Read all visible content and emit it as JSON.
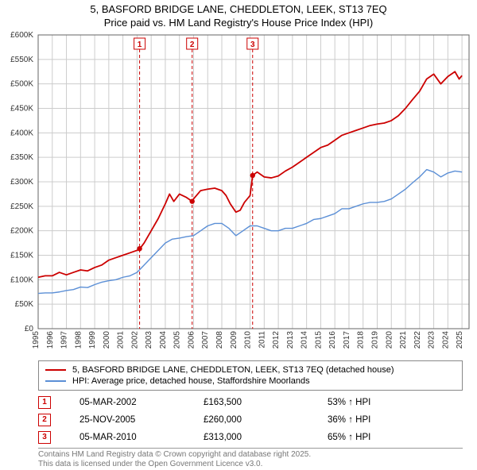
{
  "title_line1": "5, BASFORD BRIDGE LANE, CHEDDLETON, LEEK, ST13 7EQ",
  "title_line2": "Price paid vs. HM Land Registry's House Price Index (HPI)",
  "title_fontsize": 13,
  "chart": {
    "type": "line",
    "background_color": "#ffffff",
    "grid_color": "#cccccc",
    "axis_color": "#666666",
    "tick_fontsize": 10,
    "x_years": [
      1995,
      1996,
      1997,
      1998,
      1999,
      2000,
      2001,
      2002,
      2003,
      2004,
      2005,
      2006,
      2007,
      2008,
      2009,
      2010,
      2011,
      2012,
      2013,
      2014,
      2015,
      2016,
      2017,
      2018,
      2019,
      2020,
      2021,
      2022,
      2023,
      2024,
      2025
    ],
    "y_ticks": [
      0,
      50000,
      100000,
      150000,
      200000,
      250000,
      300000,
      350000,
      400000,
      450000,
      500000,
      550000,
      600000
    ],
    "y_tick_labels": [
      "£0",
      "£50K",
      "£100K",
      "£150K",
      "£200K",
      "£250K",
      "£300K",
      "£350K",
      "£400K",
      "£450K",
      "£500K",
      "£550K",
      "£600K"
    ],
    "xlim": [
      1995,
      2025.5
    ],
    "ylim": [
      0,
      600000
    ],
    "series": [
      {
        "name": "price_paid",
        "color": "#cc0000",
        "line_width": 1.8,
        "data": [
          [
            1995,
            105000
          ],
          [
            1995.5,
            108000
          ],
          [
            1996,
            108000
          ],
          [
            1996.5,
            115000
          ],
          [
            1997,
            110000
          ],
          [
            1997.5,
            115000
          ],
          [
            1998,
            120000
          ],
          [
            1998.5,
            118000
          ],
          [
            1999,
            125000
          ],
          [
            1999.5,
            130000
          ],
          [
            2000,
            140000
          ],
          [
            2000.5,
            145000
          ],
          [
            2001,
            150000
          ],
          [
            2001.5,
            155000
          ],
          [
            2002,
            160000
          ],
          [
            2002.2,
            163500
          ],
          [
            2002.5,
            175000
          ],
          [
            2003,
            200000
          ],
          [
            2003.5,
            225000
          ],
          [
            2004,
            255000
          ],
          [
            2004.3,
            275000
          ],
          [
            2004.6,
            260000
          ],
          [
            2005,
            275000
          ],
          [
            2005.5,
            268000
          ],
          [
            2005.9,
            260000
          ],
          [
            2006,
            265000
          ],
          [
            2006.5,
            282000
          ],
          [
            2007,
            285000
          ],
          [
            2007.5,
            287000
          ],
          [
            2008,
            282000
          ],
          [
            2008.3,
            272000
          ],
          [
            2008.6,
            255000
          ],
          [
            2009,
            238000
          ],
          [
            2009.3,
            242000
          ],
          [
            2009.6,
            258000
          ],
          [
            2010,
            272000
          ],
          [
            2010.18,
            313000
          ],
          [
            2010.5,
            320000
          ],
          [
            2011,
            310000
          ],
          [
            2011.5,
            308000
          ],
          [
            2012,
            312000
          ],
          [
            2012.5,
            322000
          ],
          [
            2013,
            330000
          ],
          [
            2013.5,
            340000
          ],
          [
            2014,
            350000
          ],
          [
            2014.5,
            360000
          ],
          [
            2015,
            370000
          ],
          [
            2015.5,
            375000
          ],
          [
            2016,
            385000
          ],
          [
            2016.5,
            395000
          ],
          [
            2017,
            400000
          ],
          [
            2017.5,
            405000
          ],
          [
            2018,
            410000
          ],
          [
            2018.5,
            415000
          ],
          [
            2019,
            418000
          ],
          [
            2019.5,
            420000
          ],
          [
            2020,
            425000
          ],
          [
            2020.5,
            435000
          ],
          [
            2021,
            450000
          ],
          [
            2021.5,
            468000
          ],
          [
            2022,
            485000
          ],
          [
            2022.5,
            510000
          ],
          [
            2023,
            520000
          ],
          [
            2023.5,
            500000
          ],
          [
            2024,
            515000
          ],
          [
            2024.5,
            525000
          ],
          [
            2024.8,
            510000
          ],
          [
            2025,
            517000
          ]
        ]
      },
      {
        "name": "hpi",
        "color": "#5b8fd6",
        "line_width": 1.4,
        "data": [
          [
            1995,
            72000
          ],
          [
            1995.5,
            73000
          ],
          [
            1996,
            73000
          ],
          [
            1996.5,
            75000
          ],
          [
            1997,
            78000
          ],
          [
            1997.5,
            80000
          ],
          [
            1998,
            85000
          ],
          [
            1998.5,
            84000
          ],
          [
            1999,
            90000
          ],
          [
            1999.5,
            95000
          ],
          [
            2000,
            98000
          ],
          [
            2000.5,
            100000
          ],
          [
            2001,
            105000
          ],
          [
            2001.5,
            108000
          ],
          [
            2002,
            115000
          ],
          [
            2002.5,
            130000
          ],
          [
            2003,
            145000
          ],
          [
            2003.5,
            160000
          ],
          [
            2004,
            175000
          ],
          [
            2004.5,
            183000
          ],
          [
            2005,
            185000
          ],
          [
            2005.5,
            188000
          ],
          [
            2006,
            190000
          ],
          [
            2006.5,
            200000
          ],
          [
            2007,
            210000
          ],
          [
            2007.5,
            215000
          ],
          [
            2008,
            215000
          ],
          [
            2008.5,
            205000
          ],
          [
            2009,
            190000
          ],
          [
            2009.5,
            200000
          ],
          [
            2010,
            210000
          ],
          [
            2010.5,
            210000
          ],
          [
            2011,
            205000
          ],
          [
            2011.5,
            200000
          ],
          [
            2012,
            200000
          ],
          [
            2012.5,
            205000
          ],
          [
            2013,
            205000
          ],
          [
            2013.5,
            210000
          ],
          [
            2014,
            215000
          ],
          [
            2014.5,
            223000
          ],
          [
            2015,
            225000
          ],
          [
            2015.5,
            230000
          ],
          [
            2016,
            235000
          ],
          [
            2016.5,
            245000
          ],
          [
            2017,
            245000
          ],
          [
            2017.5,
            250000
          ],
          [
            2018,
            255000
          ],
          [
            2018.5,
            258000
          ],
          [
            2019,
            258000
          ],
          [
            2019.5,
            260000
          ],
          [
            2020,
            265000
          ],
          [
            2020.5,
            275000
          ],
          [
            2021,
            285000
          ],
          [
            2021.5,
            298000
          ],
          [
            2022,
            310000
          ],
          [
            2022.5,
            325000
          ],
          [
            2023,
            320000
          ],
          [
            2023.5,
            310000
          ],
          [
            2024,
            318000
          ],
          [
            2024.5,
            322000
          ],
          [
            2025,
            320000
          ]
        ]
      }
    ],
    "sale_markers": [
      {
        "label": "1",
        "year": 2002.18,
        "price": 163500,
        "line_color": "#cc0000",
        "dash": "4,3"
      },
      {
        "label": "2",
        "year": 2005.9,
        "price": 260000,
        "line_color": "#cc0000",
        "dash": "4,3"
      },
      {
        "label": "3",
        "year": 2010.18,
        "price": 313000,
        "line_color": "#cc0000",
        "dash": "4,3"
      }
    ],
    "marker_dot_radius": 3.2
  },
  "legend": {
    "items": [
      {
        "color": "#cc0000",
        "text": "5, BASFORD BRIDGE LANE, CHEDDLETON, LEEK, ST13 7EQ (detached house)"
      },
      {
        "color": "#5b8fd6",
        "text": "HPI: Average price, detached house, Staffordshire Moorlands"
      }
    ]
  },
  "sales_table": {
    "rows": [
      {
        "marker": "1",
        "date": "05-MAR-2002",
        "price": "£163,500",
        "diff": "53% ↑ HPI"
      },
      {
        "marker": "2",
        "date": "25-NOV-2005",
        "price": "£260,000",
        "diff": "36% ↑ HPI"
      },
      {
        "marker": "3",
        "date": "05-MAR-2010",
        "price": "£313,000",
        "diff": "65% ↑ HPI"
      }
    ]
  },
  "footer": {
    "line1": "Contains HM Land Registry data © Crown copyright and database right 2025.",
    "line2": "This data is licensed under the Open Government Licence v3.0."
  }
}
